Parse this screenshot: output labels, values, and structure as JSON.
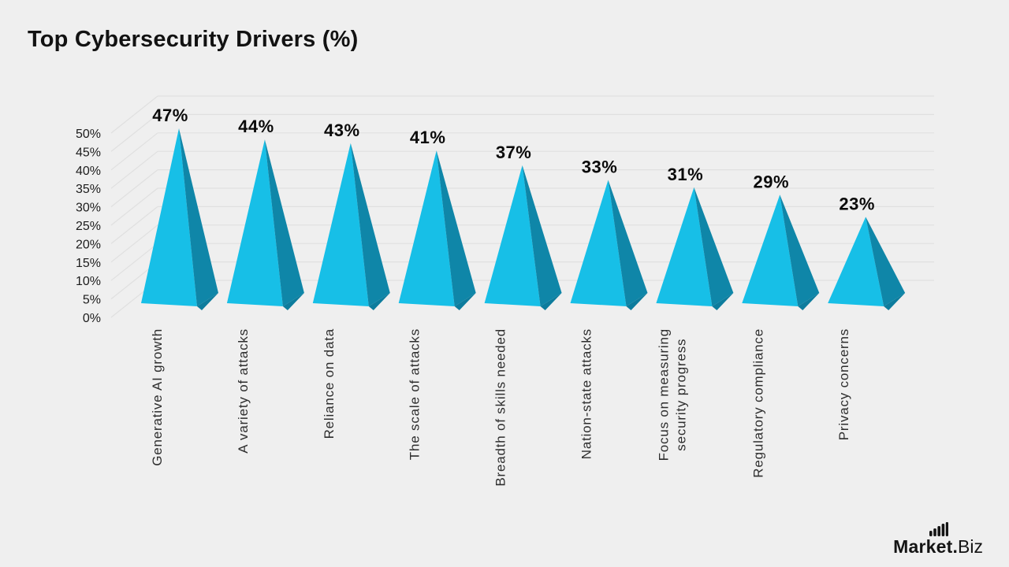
{
  "title": "Top Cybersecurity Drivers (%)",
  "brand": {
    "bold": "Market.",
    "light": "Biz",
    "icon": "bar-chart-icon"
  },
  "colors": {
    "background": "#efefef",
    "grid": "#e0e0e0",
    "pyramid_front": "#17bfe7",
    "pyramid_side": "#0f86a8",
    "pyramid_base": "#0d7c9d",
    "title_text": "#121212",
    "label_text": "#2d2d2d",
    "value_text": "#0a0a0a"
  },
  "chart_data": {
    "type": "bar",
    "variant": "3d-pyramid",
    "title": "Top Cybersecurity Drivers (%)",
    "xlabel": "",
    "ylabel": "",
    "ylim": [
      0,
      50
    ],
    "grid": true,
    "legend": "none",
    "y_ticks": [
      "50%",
      "45%",
      "40%",
      "35%",
      "30%",
      "25%",
      "20%",
      "15%",
      "10%",
      "5%",
      "0%"
    ],
    "categories": [
      "Generative AI growth",
      "A variety of attacks",
      "Reliance on data",
      "The scale of attacks",
      "Breadth of skills needed",
      "Nation-state attacks",
      "Focus on measuring\nsecurity progress",
      "Regulatory compliance",
      "Privacy concerns"
    ],
    "values": [
      47,
      44,
      43,
      41,
      37,
      33,
      31,
      29,
      23
    ],
    "value_labels": [
      "47%",
      "44%",
      "43%",
      "41%",
      "37%",
      "33%",
      "31%",
      "29%",
      "23%"
    ]
  }
}
